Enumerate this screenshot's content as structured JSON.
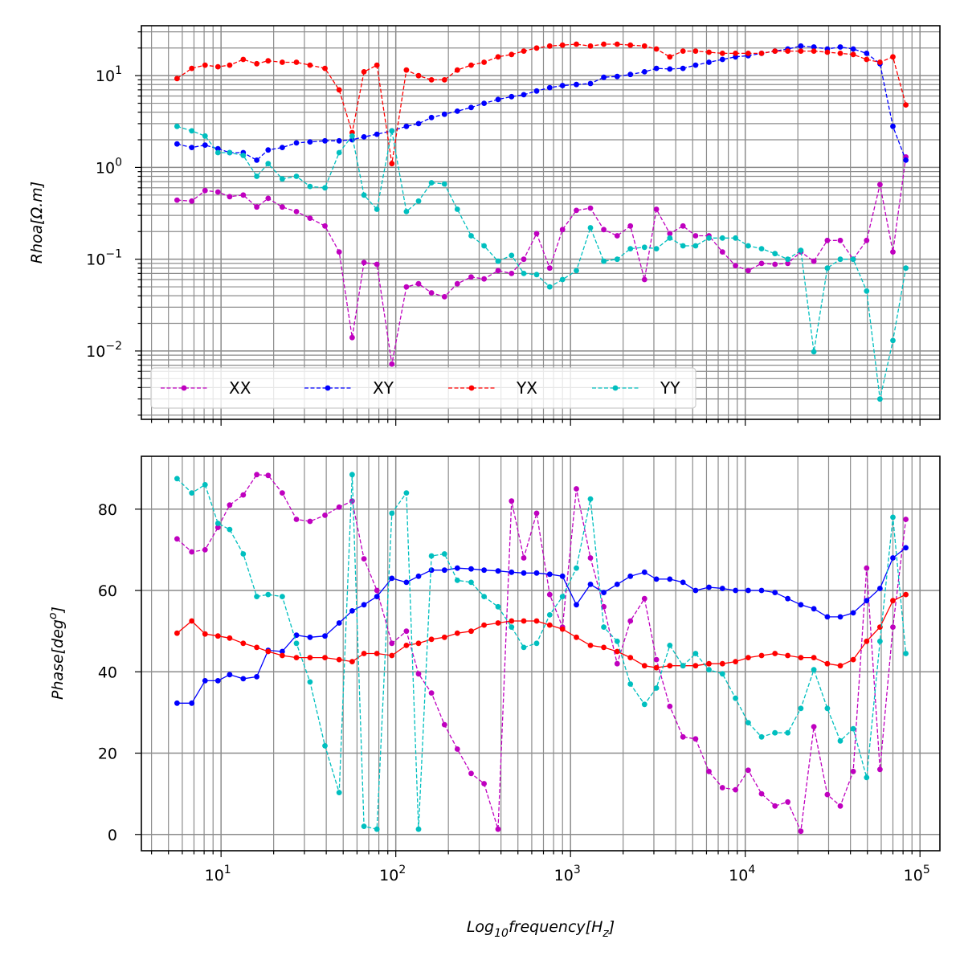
{
  "chart_data": [
    {
      "type": "line",
      "panel": "top",
      "ylabel": "Rhoa[Ω.m]",
      "xlabel": "",
      "xscale": "log",
      "yscale": "log",
      "xlim": [
        3.5,
        130000
      ],
      "ylim": [
        0.0018,
        35
      ],
      "grid": true,
      "legend": {
        "placement": "lower-left",
        "columns": 4
      },
      "yticks": [
        {
          "value": 10,
          "base": "10",
          "exp": "1"
        },
        {
          "value": 1,
          "base": "10",
          "exp": "0"
        },
        {
          "value": 0.1,
          "base": "10",
          "exp": "−1"
        },
        {
          "value": 0.01,
          "base": "10",
          "exp": "−2"
        }
      ],
      "x": [
        5.6,
        6.8,
        8.1,
        9.6,
        11.2,
        13.4,
        16.0,
        18.6,
        22.4,
        27.0,
        32.3,
        39.3,
        47.4,
        56.3,
        65.8,
        78.0,
        95.0,
        115.0,
        135.0,
        160.0,
        190.0,
        225.0,
        270.0,
        320.0,
        385.0,
        460.0,
        540.0,
        640.0,
        760.0,
        900.0,
        1080.0,
        1300.0,
        1550.0,
        1850.0,
        2200.0,
        2650.0,
        3100.0,
        3700.0,
        4400.0,
        5200.0,
        6200.0,
        7400.0,
        8800.0,
        10400.0,
        12400.0,
        14800.0,
        17500.0,
        20800.0,
        24700.0,
        29500.0,
        35000.0,
        41500.0,
        49500.0,
        59000.0,
        70000.0,
        83000.0
      ],
      "series": [
        {
          "name": "XX",
          "color": "#bf00bf",
          "dash": true,
          "values": [
            0.44,
            0.43,
            0.56,
            0.54,
            0.48,
            0.5,
            0.37,
            0.46,
            0.37,
            0.33,
            0.28,
            0.23,
            0.12,
            0.014,
            0.092,
            0.088,
            0.0072,
            0.05,
            0.054,
            0.043,
            0.039,
            0.054,
            0.064,
            0.061,
            0.075,
            0.07,
            0.1,
            0.19,
            0.08,
            0.21,
            0.34,
            0.36,
            0.21,
            0.18,
            0.23,
            0.06,
            0.35,
            0.19,
            0.23,
            0.18,
            0.18,
            0.12,
            0.085,
            0.075,
            0.09,
            0.088,
            0.09,
            0.12,
            0.095,
            0.16,
            0.16,
            0.1,
            0.16,
            0.65,
            0.12,
            1.3
          ]
        },
        {
          "name": "XY",
          "color": "#0000ff",
          "dash": true,
          "values": [
            1.8,
            1.65,
            1.75,
            1.6,
            1.45,
            1.45,
            1.2,
            1.55,
            1.65,
            1.85,
            1.9,
            1.95,
            1.95,
            2.0,
            2.15,
            2.3,
            2.5,
            2.8,
            3.0,
            3.5,
            3.8,
            4.1,
            4.5,
            5.0,
            5.5,
            5.9,
            6.2,
            6.8,
            7.4,
            7.8,
            8.0,
            8.2,
            9.6,
            9.8,
            10.3,
            11.0,
            12.0,
            11.8,
            12.0,
            13.0,
            14.0,
            15.0,
            16.0,
            16.5,
            17.5,
            18.5,
            19.5,
            21.0,
            20.5,
            19.5,
            20.5,
            19.5,
            17.5,
            13.5,
            2.8,
            1.2
          ]
        },
        {
          "name": "YX",
          "color": "#ff0000",
          "dash": true,
          "values": [
            9.3,
            12.0,
            13.0,
            12.5,
            13.0,
            15.0,
            13.5,
            14.5,
            14.0,
            14.0,
            13.0,
            12.0,
            7.0,
            2.4,
            11.0,
            13.0,
            1.1,
            11.5,
            10.0,
            9.0,
            9.0,
            11.5,
            13.0,
            14.0,
            16.0,
            17.0,
            18.5,
            20.0,
            21.0,
            21.5,
            22.0,
            21.0,
            22.0,
            22.0,
            21.5,
            21.0,
            19.5,
            16.0,
            18.5,
            18.5,
            18.0,
            17.5,
            17.5,
            17.5,
            17.5,
            18.5,
            18.5,
            18.5,
            18.5,
            18.0,
            17.5,
            17.0,
            15.0,
            14.0,
            16.0,
            4.8
          ]
        },
        {
          "name": "YY",
          "color": "#00bfbf",
          "dash": true,
          "values": [
            2.8,
            2.5,
            2.2,
            1.45,
            1.45,
            1.35,
            0.8,
            1.1,
            0.75,
            0.8,
            0.62,
            0.6,
            1.45,
            2.2,
            0.5,
            0.35,
            2.5,
            0.33,
            0.43,
            0.68,
            0.66,
            0.35,
            0.18,
            0.14,
            0.095,
            0.11,
            0.07,
            0.068,
            0.05,
            0.06,
            0.075,
            0.22,
            0.095,
            0.1,
            0.13,
            0.135,
            0.13,
            0.17,
            0.14,
            0.14,
            0.17,
            0.17,
            0.17,
            0.14,
            0.13,
            0.115,
            0.1,
            0.125,
            0.0098,
            0.08,
            0.1,
            0.1,
            0.045,
            0.003,
            0.013,
            0.08
          ]
        }
      ]
    },
    {
      "type": "line",
      "panel": "bottom",
      "ylabel": "Phase[deg°]",
      "xlabel": "Log₁₀frequency[Hz]",
      "xscale": "log",
      "yscale": "linear",
      "xlim": [
        3.5,
        130000
      ],
      "ylim": [
        -4,
        93
      ],
      "grid": true,
      "yticks": [
        0,
        20,
        40,
        60,
        80
      ],
      "xticks": [
        {
          "value": 10,
          "base": "10",
          "exp": "1"
        },
        {
          "value": 100,
          "base": "10",
          "exp": "2"
        },
        {
          "value": 1000,
          "base": "10",
          "exp": "3"
        },
        {
          "value": 10000,
          "base": "10",
          "exp": "4"
        },
        {
          "value": 100000,
          "base": "10",
          "exp": "5"
        }
      ],
      "x": [
        5.6,
        6.8,
        8.1,
        9.6,
        11.2,
        13.4,
        16.0,
        18.6,
        22.4,
        27.0,
        32.3,
        39.3,
        47.4,
        56.3,
        65.8,
        78.0,
        95.0,
        115.0,
        135.0,
        160.0,
        190.0,
        225.0,
        270.0,
        320.0,
        385.0,
        460.0,
        540.0,
        640.0,
        760.0,
        900.0,
        1080.0,
        1300.0,
        1550.0,
        1850.0,
        2200.0,
        2650.0,
        3100.0,
        3700.0,
        4400.0,
        5200.0,
        6200.0,
        7400.0,
        8800.0,
        10400.0,
        12400.0,
        14800.0,
        17500.0,
        20800.0,
        24700.0,
        29500.0,
        35000.0,
        41500.0,
        49500.0,
        59000.0,
        70000.0,
        83000.0
      ],
      "series": [
        {
          "name": "XX",
          "color": "#bf00bf",
          "dash": true,
          "values": [
            72.7,
            69.5,
            70.0,
            75.5,
            81.0,
            83.5,
            88.5,
            88.3,
            84.0,
            77.5,
            77.0,
            78.5,
            80.5,
            82.0,
            67.8,
            60.0,
            47.0,
            50.0,
            39.5,
            34.8,
            27.0,
            21.0,
            15.0,
            12.5,
            1.3,
            82.0,
            68.0,
            79.0,
            59.0,
            51.0,
            85.0,
            68.0,
            56.0,
            42.0,
            52.5,
            58.0,
            43.0,
            31.5,
            24.0,
            23.5,
            15.5,
            11.5,
            11.0,
            15.8,
            10.0,
            7.0,
            8.0,
            0.8,
            26.5,
            9.8,
            7.0,
            15.5,
            65.5,
            16.0,
            51.0,
            77.5
          ]
        },
        {
          "name": "XY",
          "color": "#0000ff",
          "dash": false,
          "values": [
            32.3,
            32.3,
            37.8,
            37.8,
            39.3,
            38.3,
            38.8,
            45.3,
            45.0,
            49.0,
            48.5,
            48.8,
            52.0,
            55.0,
            56.5,
            58.5,
            63.0,
            62.0,
            63.5,
            65.0,
            65.0,
            65.5,
            65.3,
            65.0,
            64.8,
            64.5,
            64.3,
            64.3,
            64.0,
            63.5,
            56.5,
            61.5,
            59.5,
            61.5,
            63.5,
            64.5,
            62.8,
            62.8,
            62.0,
            60.0,
            60.8,
            60.5,
            60.0,
            60.0,
            60.0,
            59.5,
            58.0,
            56.5,
            55.5,
            53.5,
            53.5,
            54.5,
            57.5,
            60.5,
            68.0,
            70.5
          ]
        },
        {
          "name": "YX",
          "color": "#ff0000",
          "dash": false,
          "values": [
            49.5,
            52.5,
            49.3,
            48.8,
            48.3,
            47.0,
            46.0,
            45.0,
            44.0,
            43.5,
            43.5,
            43.5,
            43.0,
            42.5,
            44.5,
            44.5,
            44.0,
            46.5,
            47.0,
            48.0,
            48.5,
            49.5,
            50.0,
            51.5,
            52.0,
            52.5,
            52.5,
            52.5,
            51.5,
            50.5,
            48.5,
            46.5,
            46.0,
            45.0,
            43.5,
            41.5,
            41.0,
            41.5,
            41.5,
            41.5,
            42.0,
            42.0,
            42.5,
            43.5,
            44.0,
            44.5,
            44.0,
            43.5,
            43.5,
            42.0,
            41.5,
            43.0,
            47.5,
            51.0,
            57.5,
            59.0
          ]
        },
        {
          "name": "YY",
          "color": "#00bfbf",
          "dash": true,
          "values": [
            87.5,
            84.0,
            86.0,
            76.5,
            75.0,
            69.0,
            58.5,
            59.0,
            58.5,
            47.0,
            37.5,
            21.8,
            10.3,
            88.5,
            2.0,
            1.3,
            79.0,
            84.0,
            1.3,
            68.5,
            69.0,
            62.5,
            62.0,
            58.5,
            56.0,
            51.0,
            46.0,
            47.0,
            54.0,
            58.5,
            65.5,
            82.5,
            51.0,
            47.5,
            37.0,
            32.0,
            36.0,
            46.5,
            41.5,
            44.5,
            40.5,
            39.5,
            33.5,
            27.5,
            24.0,
            25.0,
            25.0,
            31.0,
            40.5,
            31.0,
            23.0,
            26.0,
            14.0,
            47.5,
            78.0,
            44.5
          ]
        }
      ]
    }
  ]
}
